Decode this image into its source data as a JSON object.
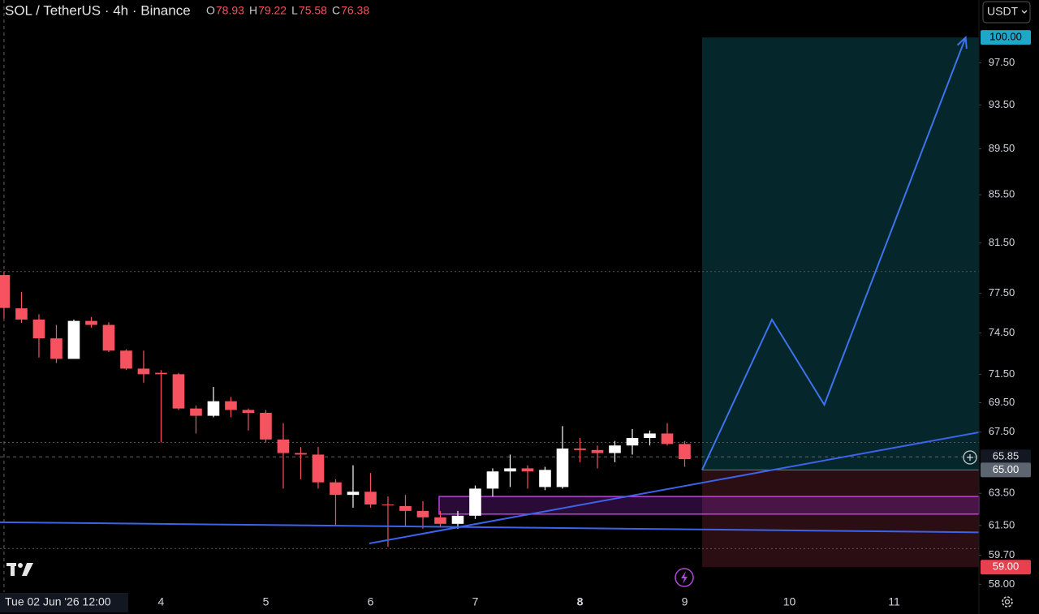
{
  "header": {
    "title": "SOL / TetherUS · 4h · Binance",
    "ohlc_letters": [
      "O",
      "H",
      "L",
      "C"
    ],
    "currency_button": "USDT"
  },
  "chart_data": {
    "type": "candlestick",
    "up_color": "#ffffff",
    "down_color": "#f7525f",
    "series": {
      "open": [
        78.93,
        76.35,
        75.5,
        74.1,
        72.6,
        75.4,
        75.1,
        73.2,
        71.9,
        71.6,
        71.5,
        69.1,
        68.6,
        69.6,
        69.0,
        68.8,
        67.0,
        66.1,
        66.0,
        64.2,
        63.4,
        63.6,
        62.8,
        62.7,
        62.4,
        62.0,
        61.6,
        62.1,
        63.8,
        64.9,
        65.1,
        63.9,
        63.9,
        66.4,
        66.3,
        66.1,
        66.6,
        67.1,
        67.4,
        66.7
      ],
      "high": [
        79.22,
        77.6,
        75.9,
        75.1,
        75.5,
        75.7,
        75.3,
        73.3,
        73.2,
        71.8,
        71.6,
        69.3,
        70.6,
        69.9,
        69.1,
        69.0,
        68.1,
        66.5,
        66.5,
        64.4,
        65.3,
        64.8,
        63.3,
        63.4,
        63.0,
        62.4,
        62.4,
        64.0,
        65.1,
        66.0,
        65.3,
        65.2,
        67.9,
        67.1,
        66.6,
        66.9,
        67.7,
        67.6,
        68.1,
        66.9
      ],
      "low": [
        75.58,
        75.25,
        72.7,
        72.3,
        72.6,
        74.9,
        73.1,
        71.8,
        70.9,
        66.8,
        69.0,
        67.4,
        68.5,
        68.5,
        67.6,
        66.8,
        63.8,
        64.4,
        63.8,
        61.5,
        62.6,
        62.6,
        60.2,
        61.4,
        61.3,
        61.4,
        61.3,
        61.9,
        63.3,
        63.9,
        63.8,
        63.7,
        63.8,
        65.5,
        65.1,
        65.5,
        66.0,
        66.6,
        66.6,
        65.2
      ],
      "close": [
        76.38,
        75.5,
        74.1,
        72.6,
        75.4,
        75.1,
        73.2,
        71.9,
        71.5,
        71.5,
        69.1,
        68.6,
        69.6,
        69.0,
        68.8,
        67.0,
        66.1,
        66.0,
        64.2,
        63.4,
        63.6,
        62.8,
        62.75,
        62.4,
        62.0,
        61.6,
        62.1,
        63.8,
        64.9,
        65.1,
        64.9,
        65.0,
        66.4,
        66.3,
        66.1,
        66.6,
        67.1,
        67.4,
        66.7,
        65.7
      ]
    },
    "log_scale": true,
    "xlim": [
      -0.23,
      55.86
    ],
    "ylim": [
      57.55,
      103.8
    ],
    "xticks": [
      {
        "value": 9,
        "label": "4"
      },
      {
        "value": 15,
        "label": "5"
      },
      {
        "value": 21,
        "label": "6"
      },
      {
        "value": 27,
        "label": "7"
      },
      {
        "value": 33,
        "label": "8"
      },
      {
        "value": 39,
        "label": "9"
      },
      {
        "value": 45,
        "label": "10"
      },
      {
        "value": 51,
        "label": "11"
      }
    ],
    "emphasized_xtick": 4,
    "yticks": [
      {
        "value": 97.5,
        "label": "97.50"
      },
      {
        "value": 93.5,
        "label": "93.50"
      },
      {
        "value": 89.5,
        "label": "89.50"
      },
      {
        "value": 85.5,
        "label": "85.50"
      },
      {
        "value": 81.5,
        "label": "81.50"
      },
      {
        "value": 77.5,
        "label": "77.50"
      },
      {
        "value": 74.5,
        "label": "74.50"
      },
      {
        "value": 71.5,
        "label": "71.50"
      },
      {
        "value": 69.5,
        "label": "69.50"
      },
      {
        "value": 67.5,
        "label": "67.50"
      },
      {
        "value": 63.5,
        "label": "63.50"
      },
      {
        "value": 61.5,
        "label": "61.50"
      },
      {
        "value": 59.7,
        "label": "59.70"
      },
      {
        "value": 58,
        "label": "58.00"
      }
    ],
    "crosshair": {
      "x": 0,
      "x_label": "Tue 02 Jun '26 12:00",
      "price": {
        "value": 65.85,
        "label": "65.85"
      }
    },
    "position": {
      "start": 40,
      "end": 55.86,
      "target": {
        "value": 100,
        "label": "100.00"
      },
      "entry": {
        "value": 65,
        "label": "65.00"
      },
      "stop": {
        "value": 59,
        "label": "59.00"
      }
    },
    "horizontal_lines": [
      79.2,
      66.8,
      60.1
    ],
    "trendlines": [
      {
        "x": [
          -0.23,
          55.86
        ],
        "y": [
          61.7,
          61.08
        ]
      },
      {
        "x": [
          20.93,
          55.86
        ],
        "y": [
          60.41,
          67.48
        ]
      }
    ],
    "zone": {
      "x": [
        24.93,
        55.86
      ],
      "y": [
        63.3,
        62.2
      ]
    },
    "path": {
      "x": [
        40,
        44,
        47,
        55.1
      ],
      "y": [
        65,
        75.5,
        69.36,
        100
      ]
    }
  }
}
